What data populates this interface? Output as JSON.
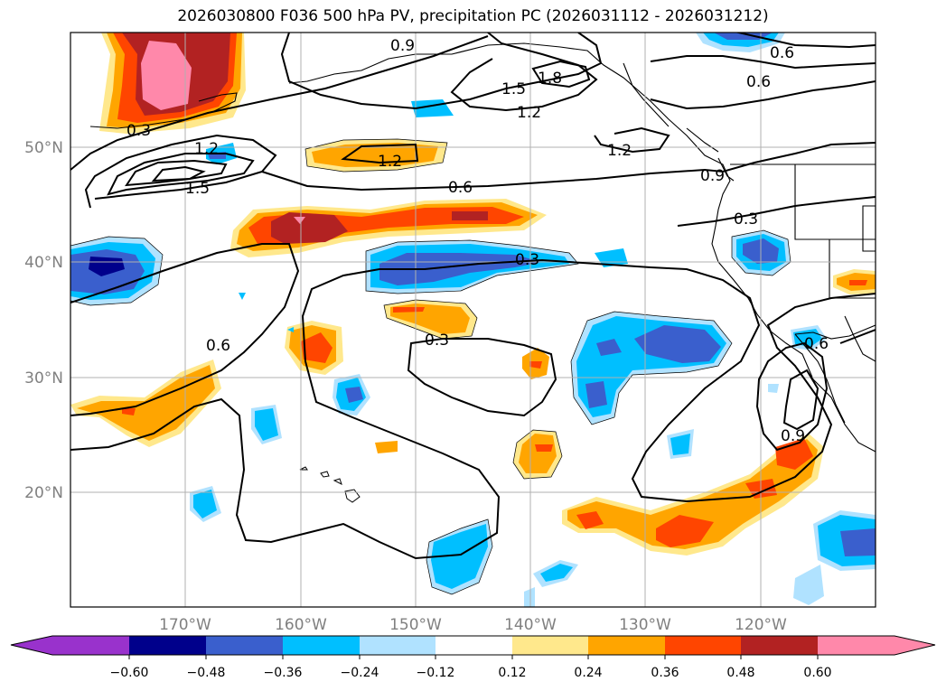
{
  "title": "2026030800 F036 500 hPa PV, precipitation PC (2026031112 - 2026031212)",
  "map": {
    "lon_labels": [
      "170°W",
      "160°W",
      "150°W",
      "140°W",
      "130°W",
      "120°W"
    ],
    "lat_labels": [
      "50°N",
      "40°N",
      "30°N",
      "20°N"
    ],
    "contour_labels": [
      "0.9",
      "0.6",
      "0.6",
      "1.8",
      "1.5",
      "1.2",
      "0.3",
      "1.2",
      "1.5",
      "1.2",
      "1.2",
      "0.6",
      "0.9",
      "0.3",
      "0.3",
      "0.6",
      "0.3",
      "0.6",
      "0.9"
    ],
    "colors": {
      "label": "#808080",
      "grid": "#b0b0b0",
      "contour": "#000000"
    }
  },
  "colorbar": {
    "ticks": [
      "−0.60",
      "−0.48",
      "−0.36",
      "−0.24",
      "−0.12",
      "0.12",
      "0.24",
      "0.36",
      "0.48",
      "0.60"
    ],
    "colors": [
      "#9932cc",
      "#00008b",
      "#3a5fcd",
      "#00bfff",
      "#b0e2ff",
      "#ffffff",
      "#ffe88c",
      "#ffa500",
      "#ff4500",
      "#b22222",
      "#ff88aa"
    ]
  }
}
